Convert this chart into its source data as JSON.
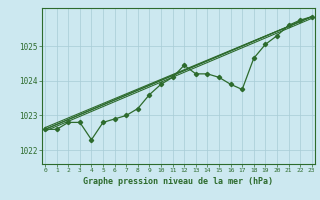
{
  "title": "Graphe pression niveau de la mer (hPa)",
  "background_color": "#cce8f0",
  "grid_color": "#a8ccd6",
  "line_color": "#2d6b2d",
  "x_ticks": [
    0,
    1,
    2,
    3,
    4,
    5,
    6,
    7,
    8,
    9,
    10,
    11,
    12,
    13,
    14,
    15,
    16,
    17,
    18,
    19,
    20,
    21,
    22,
    23
  ],
  "y_ticks": [
    1022,
    1023,
    1024,
    1025
  ],
  "ylim": [
    1021.6,
    1026.1
  ],
  "xlim": [
    -0.3,
    23.3
  ],
  "main_series": [
    1022.6,
    1022.6,
    1022.8,
    1022.8,
    1022.3,
    1022.8,
    1022.9,
    1023.0,
    1023.2,
    1023.6,
    1023.9,
    1024.1,
    1024.45,
    1024.2,
    1024.2,
    1024.1,
    1023.9,
    1023.75,
    1024.65,
    1025.05,
    1025.3,
    1025.6,
    1025.75,
    1025.85
  ],
  "straight_lines": [
    [
      [
        0,
        23
      ],
      [
        1022.6,
        1025.85
      ]
    ],
    [
      [
        0,
        23
      ],
      [
        1022.6,
        1025.85
      ]
    ],
    [
      [
        0,
        23
      ],
      [
        1022.65,
        1025.85
      ]
    ],
    [
      [
        0,
        23
      ],
      [
        1022.55,
        1025.8
      ]
    ]
  ]
}
